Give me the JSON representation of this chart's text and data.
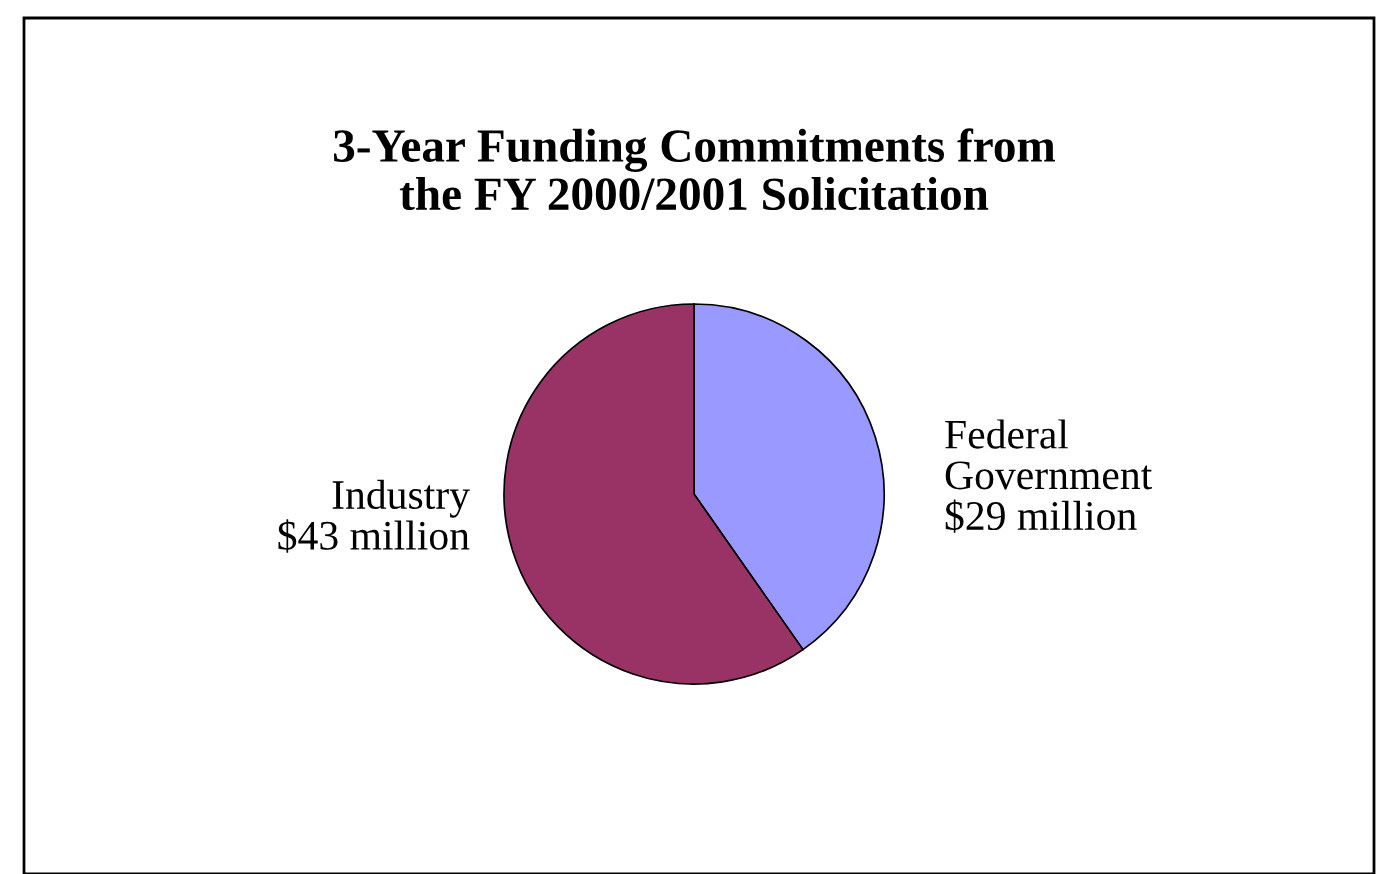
{
  "chart_data": {
    "type": "pie",
    "title": "3-Year Funding Commitments from\nthe FY 2000/2001 Solicitation",
    "categories": [
      "Federal Government",
      "Industry"
    ],
    "values": [
      29,
      43
    ],
    "value_labels": [
      "$29 million",
      "$43 million"
    ],
    "colors": [
      "#9999ff",
      "#993366"
    ]
  }
}
